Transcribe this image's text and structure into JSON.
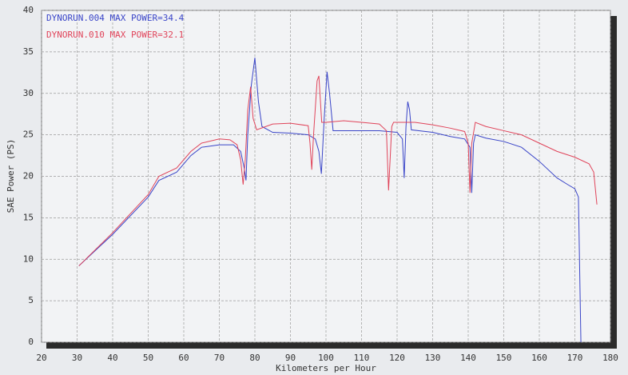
{
  "chart_data": {
    "type": "line",
    "xlabel": "Kilometers per Hour",
    "ylabel": "SAE Power (PS)",
    "xlim": [
      20,
      180
    ],
    "ylim": [
      0,
      40
    ],
    "xticks": [
      20,
      30,
      40,
      50,
      60,
      70,
      80,
      90,
      100,
      110,
      120,
      130,
      140,
      150,
      160,
      170,
      180
    ],
    "yticks": [
      0,
      5,
      10,
      15,
      20,
      25,
      30,
      35,
      40
    ],
    "grid": true,
    "legend": "upper left",
    "series": [
      {
        "name": "DYNORUN.004  MAX POWER=34.4",
        "color": "#3a45c8",
        "x": [
          30.5,
          40,
          50,
          53,
          58,
          62,
          65,
          70,
          74,
          76,
          77,
          77.5,
          78,
          79,
          80,
          81,
          82,
          85,
          90,
          95,
          97,
          98,
          98.7,
          99.5,
          100.3,
          101,
          102,
          105,
          110,
          115,
          120,
          121.5,
          122,
          122.5,
          123,
          123.5,
          124,
          130,
          135,
          139,
          140.5,
          141,
          141.5,
          142,
          145,
          150,
          155,
          160,
          165,
          168,
          170,
          171,
          171.7
        ],
        "values": [
          9.2,
          13,
          17.5,
          19.5,
          20.5,
          22.5,
          23.5,
          23.8,
          23.8,
          23,
          21,
          19.5,
          25,
          31,
          34.3,
          29,
          26,
          25.3,
          25.2,
          25,
          24.5,
          23,
          20.3,
          27,
          32.6,
          30,
          25.5,
          25.5,
          25.5,
          25.5,
          25.3,
          24.5,
          19.8,
          26,
          29,
          28,
          25.6,
          25.3,
          24.8,
          24.5,
          23.5,
          18,
          24,
          25,
          24.6,
          24.2,
          23.5,
          21.8,
          19.8,
          19,
          18.5,
          17.5,
          0
        ]
      },
      {
        "name": "DYNORUN.010  MAX POWER=32.1",
        "color": "#e0445a",
        "x": [
          30.5,
          40,
          50,
          53,
          58,
          62,
          65,
          70,
          73,
          75,
          76,
          76.7,
          77.3,
          78,
          78.8,
          79.5,
          80.5,
          85,
          90,
          95,
          95.5,
          96,
          96.5,
          97.5,
          98,
          98.8,
          100,
          105,
          110,
          115,
          117,
          117.6,
          118.5,
          119,
          125,
          130,
          135,
          139,
          140,
          140.5,
          141,
          142,
          145,
          150,
          155,
          160,
          165,
          170,
          174,
          175.3,
          176.2
        ],
        "values": [
          9.2,
          13.2,
          17.8,
          20,
          21,
          23,
          24,
          24.5,
          24.4,
          23.8,
          22,
          19,
          22,
          28,
          30.8,
          27,
          25.6,
          26.3,
          26.4,
          26.1,
          24,
          20.8,
          25,
          31.5,
          32.1,
          26.5,
          26.5,
          26.7,
          26.5,
          26.3,
          25.5,
          18.3,
          26,
          26.5,
          26.5,
          26.2,
          25.8,
          25.4,
          24,
          18,
          24,
          26.5,
          26,
          25.5,
          25,
          24,
          23,
          22.3,
          21.5,
          20.5,
          16.6
        ]
      }
    ]
  }
}
